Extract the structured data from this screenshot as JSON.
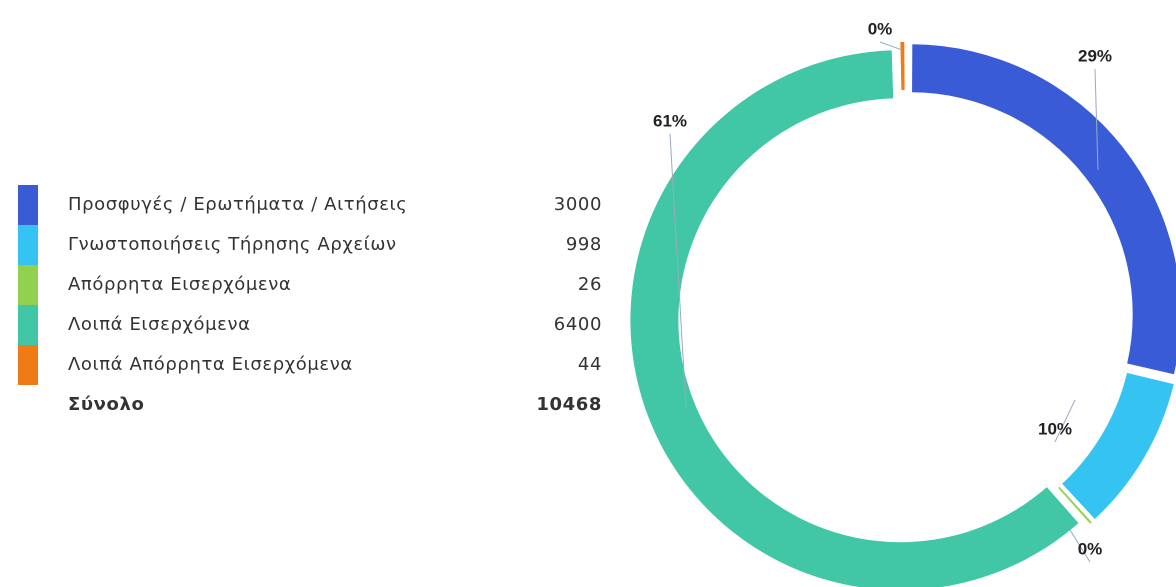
{
  "chart_data": {
    "type": "donut",
    "categories": [
      "Προσφυγές / Ερωτήματα / Αιτήσεις",
      "Γνωστοποιήσεις Τήρησης Αρχείων",
      "Απόρρητα Εισερχόμενα",
      "Λοιπά Εισερχόμενα",
      "Λοιπά Απόρρητα Εισερχόμενα"
    ],
    "values": [
      3000,
      998,
      26,
      6400,
      44
    ],
    "colors": [
      "#3a5bd6",
      "#35c3f2",
      "#92d050",
      "#42c7a6",
      "#f07a16"
    ],
    "slice_labels": [
      "29%",
      "10%",
      "0%",
      "61%",
      "0%"
    ],
    "total": {
      "label": "Σύνολο",
      "value": 10468
    }
  }
}
